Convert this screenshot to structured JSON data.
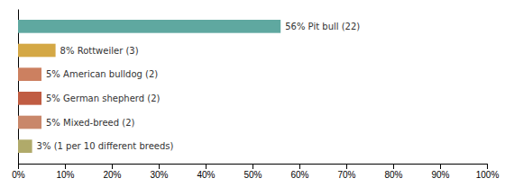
{
  "chart_data": {
    "type": "bar",
    "orientation": "horizontal",
    "categories": [
      "3% (1 per 10 different breeds)",
      "5% Mixed-breed (2)",
      "5% German shepherd (2)",
      "5% American bulldog (2)",
      "8% Rottweiler (3)",
      "56% Pit bull (22)"
    ],
    "values": [
      3,
      5,
      5,
      5,
      8,
      56
    ],
    "colors": [
      "#b0aa6a",
      "#c9876a",
      "#c05c42",
      "#cc8060",
      "#d4a845",
      "#5fa8a0"
    ],
    "xlim": [
      0,
      100
    ],
    "xticks": [
      {
        "value": 0,
        "label": "0%"
      },
      {
        "value": 10,
        "label": "10%"
      },
      {
        "value": 20,
        "label": "20%"
      },
      {
        "value": 30,
        "label": "30%"
      },
      {
        "value": 40,
        "label": "40%"
      },
      {
        "value": 50,
        "label": "50%"
      },
      {
        "value": 60,
        "label": "60%"
      },
      {
        "value": 70,
        "label": "70%"
      },
      {
        "value": 80,
        "label": "80%"
      },
      {
        "value": 90,
        "label": "90%"
      },
      {
        "value": 100,
        "label": "100%"
      }
    ],
    "grid": false,
    "tick_labels": "x"
  }
}
